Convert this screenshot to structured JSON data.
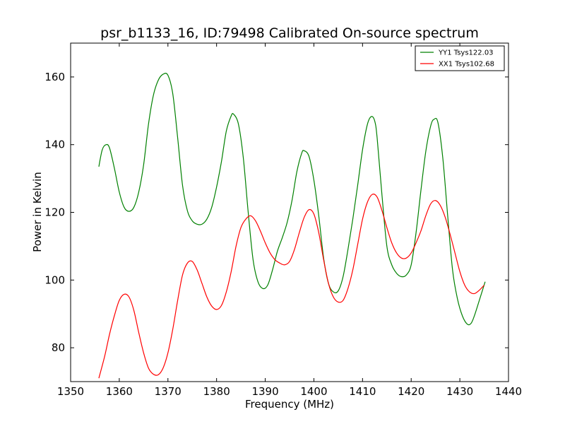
{
  "chart_data": {
    "type": "line",
    "title": "psr_b1133_16, ID:79498 Calibrated On-source spectrum",
    "xlabel": "Frequency (MHz)",
    "ylabel": "Power in Kelvin",
    "xlim": [
      1350,
      1440
    ],
    "ylim": [
      70,
      170
    ],
    "xticks": [
      1350,
      1360,
      1370,
      1380,
      1390,
      1400,
      1410,
      1420,
      1430,
      1440
    ],
    "yticks": [
      80,
      100,
      120,
      140,
      160
    ],
    "grid": false,
    "legend_position": "top-right",
    "series": [
      {
        "name": "YY1 Tsys122.03",
        "color": "#008000",
        "points": [
          [
            1355.8,
            133.5
          ],
          [
            1356.5,
            138.5
          ],
          [
            1357.3,
            140.0
          ],
          [
            1358.0,
            139.0
          ],
          [
            1359.0,
            133.0
          ],
          [
            1360.0,
            126.0
          ],
          [
            1361.0,
            121.5
          ],
          [
            1362.0,
            120.3
          ],
          [
            1363.0,
            121.5
          ],
          [
            1364.0,
            126.0
          ],
          [
            1365.0,
            134.0
          ],
          [
            1366.0,
            146.0
          ],
          [
            1367.0,
            154.5
          ],
          [
            1368.0,
            159.0
          ],
          [
            1369.0,
            160.8
          ],
          [
            1370.0,
            160.5
          ],
          [
            1371.0,
            155.0
          ],
          [
            1372.0,
            142.0
          ],
          [
            1373.0,
            128.0
          ],
          [
            1374.0,
            120.5
          ],
          [
            1375.0,
            117.5
          ],
          [
            1376.0,
            116.5
          ],
          [
            1377.0,
            116.5
          ],
          [
            1378.0,
            118.0
          ],
          [
            1379.0,
            121.5
          ],
          [
            1380.0,
            127.5
          ],
          [
            1381.0,
            135.0
          ],
          [
            1382.0,
            144.0
          ],
          [
            1383.0,
            148.5
          ],
          [
            1383.5,
            149.0
          ],
          [
            1384.5,
            146.0
          ],
          [
            1385.5,
            136.0
          ],
          [
            1386.5,
            120.0
          ],
          [
            1387.5,
            106.0
          ],
          [
            1388.5,
            99.5
          ],
          [
            1389.5,
            97.5
          ],
          [
            1390.5,
            98.5
          ],
          [
            1391.5,
            103.0
          ],
          [
            1392.5,
            108.5
          ],
          [
            1393.5,
            112.5
          ],
          [
            1394.5,
            117.0
          ],
          [
            1395.5,
            123.5
          ],
          [
            1396.5,
            132.0
          ],
          [
            1397.5,
            137.5
          ],
          [
            1398.0,
            138.2
          ],
          [
            1399.0,
            136.5
          ],
          [
            1400.0,
            129.5
          ],
          [
            1401.0,
            119.0
          ],
          [
            1402.0,
            106.5
          ],
          [
            1403.0,
            99.0
          ],
          [
            1404.0,
            96.5
          ],
          [
            1405.0,
            96.8
          ],
          [
            1406.0,
            101.0
          ],
          [
            1407.0,
            109.0
          ],
          [
            1408.0,
            118.0
          ],
          [
            1409.0,
            128.0
          ],
          [
            1410.0,
            138.5
          ],
          [
            1411.0,
            146.0
          ],
          [
            1411.8,
            148.3
          ],
          [
            1412.5,
            147.0
          ],
          [
            1413.0,
            142.0
          ],
          [
            1414.0,
            125.0
          ],
          [
            1415.0,
            110.0
          ],
          [
            1416.0,
            104.5
          ],
          [
            1417.0,
            102.0
          ],
          [
            1418.0,
            101.0
          ],
          [
            1419.0,
            101.5
          ],
          [
            1420.0,
            104.5
          ],
          [
            1421.0,
            114.0
          ],
          [
            1422.0,
            126.5
          ],
          [
            1423.0,
            138.0
          ],
          [
            1424.0,
            145.5
          ],
          [
            1424.7,
            147.5
          ],
          [
            1425.5,
            146.5
          ],
          [
            1426.5,
            136.0
          ],
          [
            1427.5,
            119.0
          ],
          [
            1428.5,
            103.0
          ],
          [
            1429.5,
            94.5
          ],
          [
            1430.5,
            89.5
          ],
          [
            1431.5,
            87.0
          ],
          [
            1432.3,
            87.2
          ],
          [
            1433.0,
            89.5
          ],
          [
            1434.0,
            94.0
          ],
          [
            1435.2,
            99.5
          ]
        ]
      },
      {
        "name": "XX1 Tsys102.68",
        "color": "#ff0000",
        "points": [
          [
            1355.8,
            71.0
          ],
          [
            1357.0,
            77.5
          ],
          [
            1358.0,
            84.0
          ],
          [
            1359.0,
            89.5
          ],
          [
            1360.0,
            94.0
          ],
          [
            1361.0,
            95.8
          ],
          [
            1362.0,
            95.0
          ],
          [
            1363.0,
            91.0
          ],
          [
            1364.0,
            84.5
          ],
          [
            1365.0,
            78.5
          ],
          [
            1366.0,
            74.0
          ],
          [
            1367.0,
            72.2
          ],
          [
            1368.0,
            72.0
          ],
          [
            1369.0,
            74.0
          ],
          [
            1370.0,
            78.5
          ],
          [
            1371.0,
            85.5
          ],
          [
            1372.0,
            94.0
          ],
          [
            1373.0,
            101.5
          ],
          [
            1374.0,
            105.0
          ],
          [
            1375.0,
            105.5
          ],
          [
            1376.0,
            103.0
          ],
          [
            1377.0,
            99.0
          ],
          [
            1378.0,
            95.0
          ],
          [
            1379.0,
            92.3
          ],
          [
            1380.0,
            91.3
          ],
          [
            1381.0,
            92.5
          ],
          [
            1382.0,
            96.5
          ],
          [
            1383.0,
            102.5
          ],
          [
            1384.0,
            110.0
          ],
          [
            1385.0,
            115.5
          ],
          [
            1386.0,
            118.0
          ],
          [
            1387.0,
            119.0
          ],
          [
            1388.0,
            117.5
          ],
          [
            1389.0,
            114.5
          ],
          [
            1390.0,
            111.0
          ],
          [
            1391.0,
            108.0
          ],
          [
            1392.0,
            106.0
          ],
          [
            1393.0,
            105.0
          ],
          [
            1394.0,
            104.5
          ],
          [
            1395.0,
            105.5
          ],
          [
            1396.0,
            109.0
          ],
          [
            1397.0,
            114.0
          ],
          [
            1398.0,
            118.5
          ],
          [
            1399.0,
            120.8
          ],
          [
            1400.0,
            119.5
          ],
          [
            1401.0,
            114.0
          ],
          [
            1402.0,
            106.0
          ],
          [
            1403.0,
            99.0
          ],
          [
            1404.0,
            95.0
          ],
          [
            1405.0,
            93.5
          ],
          [
            1406.0,
            94.0
          ],
          [
            1407.0,
            97.5
          ],
          [
            1408.0,
            103.0
          ],
          [
            1409.0,
            110.5
          ],
          [
            1410.0,
            118.0
          ],
          [
            1411.0,
            123.0
          ],
          [
            1412.0,
            125.3
          ],
          [
            1413.0,
            124.5
          ],
          [
            1414.0,
            120.5
          ],
          [
            1415.0,
            115.5
          ],
          [
            1416.0,
            111.0
          ],
          [
            1417.0,
            108.0
          ],
          [
            1418.0,
            106.5
          ],
          [
            1419.0,
            106.5
          ],
          [
            1420.0,
            108.0
          ],
          [
            1421.0,
            111.0
          ],
          [
            1422.0,
            114.5
          ],
          [
            1423.0,
            119.0
          ],
          [
            1424.0,
            122.5
          ],
          [
            1425.0,
            123.5
          ],
          [
            1426.0,
            122.0
          ],
          [
            1427.0,
            118.5
          ],
          [
            1428.0,
            113.5
          ],
          [
            1429.0,
            108.0
          ],
          [
            1430.0,
            102.5
          ],
          [
            1431.0,
            98.5
          ],
          [
            1432.0,
            96.5
          ],
          [
            1433.0,
            96.0
          ],
          [
            1434.0,
            97.0
          ],
          [
            1435.0,
            98.5
          ]
        ]
      }
    ]
  }
}
